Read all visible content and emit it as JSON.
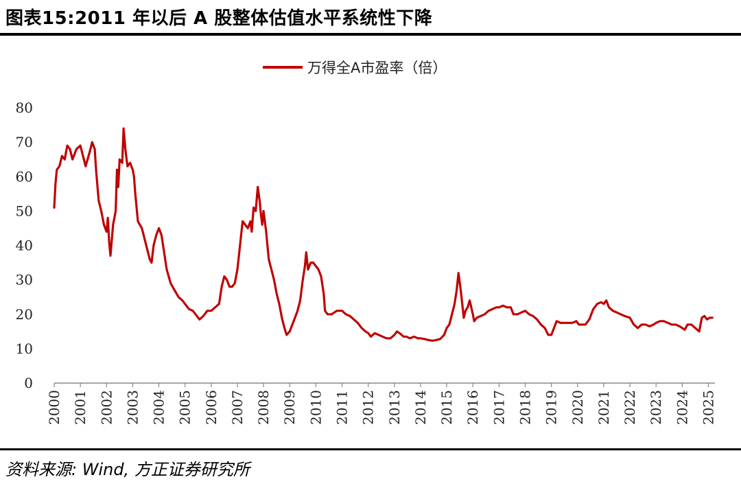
{
  "header": {
    "title": "图表15:2011 年以后 A 股整体估值水平系统性下降"
  },
  "footer": {
    "source": "资料来源: Wind, 方正证券研究所"
  },
  "chart_data": {
    "type": "line",
    "title": "",
    "xlabel": "",
    "ylabel": "",
    "ylim": [
      0,
      80
    ],
    "xlim": [
      2000.0,
      2025.25
    ],
    "yticks": [
      0,
      10,
      20,
      30,
      40,
      50,
      60,
      70,
      80
    ],
    "xtick_labels": [
      "2000",
      "2001",
      "2002",
      "2003",
      "2004",
      "2005",
      "2006",
      "2007",
      "2008",
      "2009",
      "2010",
      "2011",
      "2012",
      "2013",
      "2014",
      "2015",
      "2016",
      "2017",
      "2018",
      "2019",
      "2020",
      "2021",
      "2022",
      "2023",
      "2024",
      "2025"
    ],
    "legend": {
      "position": "top-center",
      "color": "#C00000"
    },
    "series": [
      {
        "name": "万得全A市盈率（倍）",
        "color": "#C00000",
        "points": [
          [
            2000.0,
            51
          ],
          [
            2000.05,
            58
          ],
          [
            2000.1,
            62
          ],
          [
            2000.2,
            63
          ],
          [
            2000.3,
            66
          ],
          [
            2000.4,
            65
          ],
          [
            2000.5,
            69
          ],
          [
            2000.6,
            68
          ],
          [
            2000.7,
            65
          ],
          [
            2000.85,
            68
          ],
          [
            2001.0,
            69
          ],
          [
            2001.1,
            66
          ],
          [
            2001.2,
            63
          ],
          [
            2001.35,
            67
          ],
          [
            2001.45,
            70
          ],
          [
            2001.55,
            68
          ],
          [
            2001.6,
            62
          ],
          [
            2001.7,
            53
          ],
          [
            2001.8,
            50
          ],
          [
            2001.9,
            46
          ],
          [
            2002.0,
            44
          ],
          [
            2002.05,
            48
          ],
          [
            2002.1,
            41
          ],
          [
            2002.15,
            37
          ],
          [
            2002.25,
            46
          ],
          [
            2002.35,
            50
          ],
          [
            2002.4,
            62
          ],
          [
            2002.45,
            57
          ],
          [
            2002.5,
            65
          ],
          [
            2002.6,
            64
          ],
          [
            2002.65,
            74
          ],
          [
            2002.72,
            68
          ],
          [
            2002.8,
            63
          ],
          [
            2002.9,
            64
          ],
          [
            2003.0,
            62
          ],
          [
            2003.05,
            60
          ],
          [
            2003.1,
            55
          ],
          [
            2003.2,
            47
          ],
          [
            2003.35,
            45
          ],
          [
            2003.45,
            42
          ],
          [
            2003.55,
            39
          ],
          [
            2003.65,
            36
          ],
          [
            2003.72,
            35
          ],
          [
            2003.8,
            40
          ],
          [
            2003.9,
            43
          ],
          [
            2004.0,
            45
          ],
          [
            2004.1,
            43
          ],
          [
            2004.2,
            38
          ],
          [
            2004.3,
            33
          ],
          [
            2004.45,
            29
          ],
          [
            2004.6,
            27
          ],
          [
            2004.75,
            25
          ],
          [
            2004.9,
            24
          ],
          [
            2005.0,
            23
          ],
          [
            2005.15,
            21.5
          ],
          [
            2005.3,
            21
          ],
          [
            2005.45,
            19.5
          ],
          [
            2005.55,
            18.5
          ],
          [
            2005.7,
            19.5
          ],
          [
            2005.85,
            21
          ],
          [
            2006.0,
            21
          ],
          [
            2006.15,
            22
          ],
          [
            2006.3,
            23
          ],
          [
            2006.4,
            28
          ],
          [
            2006.5,
            31
          ],
          [
            2006.6,
            30
          ],
          [
            2006.7,
            28
          ],
          [
            2006.8,
            28
          ],
          [
            2006.9,
            29
          ],
          [
            2007.0,
            33
          ],
          [
            2007.1,
            40
          ],
          [
            2007.2,
            47
          ],
          [
            2007.3,
            46
          ],
          [
            2007.4,
            45
          ],
          [
            2007.5,
            47
          ],
          [
            2007.55,
            44
          ],
          [
            2007.62,
            51
          ],
          [
            2007.7,
            50
          ],
          [
            2007.78,
            57
          ],
          [
            2007.85,
            53
          ],
          [
            2007.9,
            49
          ],
          [
            2007.95,
            46
          ],
          [
            2008.0,
            50
          ],
          [
            2008.1,
            44
          ],
          [
            2008.2,
            36
          ],
          [
            2008.3,
            33
          ],
          [
            2008.4,
            30
          ],
          [
            2008.5,
            26
          ],
          [
            2008.6,
            23
          ],
          [
            2008.7,
            19
          ],
          [
            2008.8,
            16
          ],
          [
            2008.88,
            14
          ],
          [
            2009.0,
            15
          ],
          [
            2009.15,
            18
          ],
          [
            2009.3,
            21
          ],
          [
            2009.4,
            24
          ],
          [
            2009.5,
            30
          ],
          [
            2009.58,
            34
          ],
          [
            2009.63,
            38
          ],
          [
            2009.7,
            33
          ],
          [
            2009.8,
            35
          ],
          [
            2009.9,
            35
          ],
          [
            2010.0,
            34
          ],
          [
            2010.1,
            33
          ],
          [
            2010.2,
            31
          ],
          [
            2010.3,
            26
          ],
          [
            2010.35,
            21
          ],
          [
            2010.45,
            20
          ],
          [
            2010.6,
            20
          ],
          [
            2010.8,
            21
          ],
          [
            2011.0,
            21
          ],
          [
            2011.15,
            20
          ],
          [
            2011.3,
            19.5
          ],
          [
            2011.45,
            18.5
          ],
          [
            2011.6,
            17.5
          ],
          [
            2011.75,
            16
          ],
          [
            2011.9,
            15
          ],
          [
            2012.0,
            14.5
          ],
          [
            2012.1,
            13.5
          ],
          [
            2012.25,
            14.5
          ],
          [
            2012.4,
            14
          ],
          [
            2012.55,
            13.5
          ],
          [
            2012.7,
            13
          ],
          [
            2012.85,
            13
          ],
          [
            2013.0,
            14
          ],
          [
            2013.1,
            15
          ],
          [
            2013.2,
            14.5
          ],
          [
            2013.35,
            13.5
          ],
          [
            2013.45,
            13.5
          ],
          [
            2013.6,
            13
          ],
          [
            2013.75,
            13.5
          ],
          [
            2013.9,
            13
          ],
          [
            2014.0,
            13
          ],
          [
            2014.15,
            12.8
          ],
          [
            2014.3,
            12.5
          ],
          [
            2014.45,
            12.3
          ],
          [
            2014.6,
            12.5
          ],
          [
            2014.75,
            12.8
          ],
          [
            2014.9,
            14
          ],
          [
            2015.0,
            16
          ],
          [
            2015.1,
            17
          ],
          [
            2015.2,
            20
          ],
          [
            2015.3,
            23
          ],
          [
            2015.38,
            27
          ],
          [
            2015.45,
            32
          ],
          [
            2015.52,
            28
          ],
          [
            2015.58,
            24
          ],
          [
            2015.65,
            19
          ],
          [
            2015.72,
            21
          ],
          [
            2015.8,
            22
          ],
          [
            2015.88,
            24
          ],
          [
            2016.0,
            20
          ],
          [
            2016.05,
            18
          ],
          [
            2016.15,
            19
          ],
          [
            2016.3,
            19.5
          ],
          [
            2016.45,
            20
          ],
          [
            2016.6,
            21
          ],
          [
            2016.75,
            21.5
          ],
          [
            2016.9,
            22
          ],
          [
            2017.0,
            22
          ],
          [
            2017.15,
            22.5
          ],
          [
            2017.3,
            22
          ],
          [
            2017.45,
            22
          ],
          [
            2017.55,
            20
          ],
          [
            2017.7,
            20
          ],
          [
            2017.85,
            20.5
          ],
          [
            2018.0,
            21
          ],
          [
            2018.15,
            20
          ],
          [
            2018.3,
            19.5
          ],
          [
            2018.45,
            18.5
          ],
          [
            2018.6,
            17
          ],
          [
            2018.75,
            16
          ],
          [
            2018.88,
            14
          ],
          [
            2019.0,
            14
          ],
          [
            2019.1,
            16
          ],
          [
            2019.2,
            18
          ],
          [
            2019.35,
            17.5
          ],
          [
            2019.5,
            17.5
          ],
          [
            2019.65,
            17.5
          ],
          [
            2019.8,
            17.5
          ],
          [
            2019.95,
            18
          ],
          [
            2020.05,
            17
          ],
          [
            2020.15,
            17
          ],
          [
            2020.3,
            17
          ],
          [
            2020.45,
            18.5
          ],
          [
            2020.6,
            21.5
          ],
          [
            2020.75,
            23
          ],
          [
            2020.9,
            23.5
          ],
          [
            2021.0,
            23
          ],
          [
            2021.1,
            24
          ],
          [
            2021.2,
            22
          ],
          [
            2021.35,
            21
          ],
          [
            2021.5,
            20.5
          ],
          [
            2021.65,
            20
          ],
          [
            2021.8,
            19.5
          ],
          [
            2022.0,
            19
          ],
          [
            2022.15,
            17
          ],
          [
            2022.3,
            16
          ],
          [
            2022.45,
            17
          ],
          [
            2022.6,
            17
          ],
          [
            2022.75,
            16.5
          ],
          [
            2022.9,
            17
          ],
          [
            2023.0,
            17.5
          ],
          [
            2023.15,
            18
          ],
          [
            2023.3,
            18
          ],
          [
            2023.45,
            17.5
          ],
          [
            2023.6,
            17
          ],
          [
            2023.75,
            17
          ],
          [
            2023.9,
            16.5
          ],
          [
            2024.0,
            16
          ],
          [
            2024.1,
            15.5
          ],
          [
            2024.2,
            17
          ],
          [
            2024.35,
            17
          ],
          [
            2024.5,
            16
          ],
          [
            2024.65,
            15
          ],
          [
            2024.75,
            19
          ],
          [
            2024.85,
            19.5
          ],
          [
            2024.95,
            18.5
          ],
          [
            2025.05,
            19
          ],
          [
            2025.15,
            19
          ]
        ]
      }
    ]
  }
}
